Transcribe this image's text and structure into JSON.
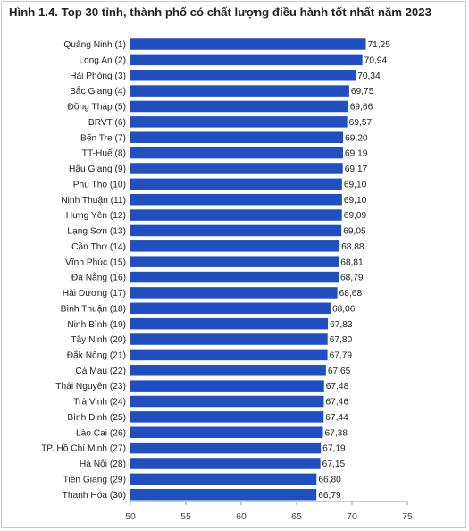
{
  "title": "Hình 1.4. Top 30 tỉnh, thành phố có chất lượng điều hành tốt nhất năm 2023",
  "colors": {
    "bar": "#1f4fc1",
    "axis": "#9a9a9a",
    "text": "#222222"
  },
  "chart_data": {
    "type": "bar",
    "orientation": "horizontal",
    "categories": [
      "Quảng Ninh (1)",
      "Long An (2)",
      "Hải Phòng (3)",
      "Bắc Giang (4)",
      "Đồng Tháp (5)",
      "BRVT (6)",
      "Bến Tre (7)",
      "TT-Huế (8)",
      "Hậu Giang (9)",
      "Phú Thọ (10)",
      "Ninh Thuận (11)",
      "Hưng Yên (12)",
      "Lạng Sơn (13)",
      "Cần Thơ (14)",
      "Vĩnh Phúc (15)",
      "Đà Nẵng (16)",
      "Hải Dương (17)",
      "Bình Thuận (18)",
      "Ninh Bình (19)",
      "Tây Ninh (20)",
      "Đắk Nông (21)",
      "Cà Mau (22)",
      "Thái Nguyên (23)",
      "Trà Vinh (24)",
      "Bình Định (25)",
      "Lào Cai (26)",
      "TP. Hồ Chí Minh (27)",
      "Hà Nội (28)",
      "Tiền Giang (29)",
      "Thanh Hóa (30)"
    ],
    "values": [
      71.25,
      70.94,
      70.34,
      69.75,
      69.66,
      69.57,
      69.2,
      69.19,
      69.17,
      69.1,
      69.1,
      69.09,
      69.05,
      68.88,
      68.81,
      68.79,
      68.68,
      68.06,
      67.83,
      67.8,
      67.79,
      67.65,
      67.48,
      67.46,
      67.44,
      67.38,
      67.19,
      67.15,
      66.8,
      66.79
    ],
    "value_labels": [
      "71,25",
      "70,94",
      "70,34",
      "69,75",
      "69,66",
      "69,57",
      "69,20",
      "69,19",
      "69,17",
      "69,10",
      "69,10",
      "69,09",
      "69,05",
      "68,88",
      "68,81",
      "68,79",
      "68,68",
      "68,06",
      "67,83",
      "67,80",
      "67,79",
      "67,65",
      "67,48",
      "67,46",
      "67,44",
      "67,38",
      "67,19",
      "67,15",
      "66,80",
      "66,79"
    ],
    "xlim": [
      50,
      75
    ],
    "xticks": [
      "50",
      "55",
      "60",
      "65",
      "70",
      "75"
    ],
    "grid": false,
    "legend": "none"
  }
}
